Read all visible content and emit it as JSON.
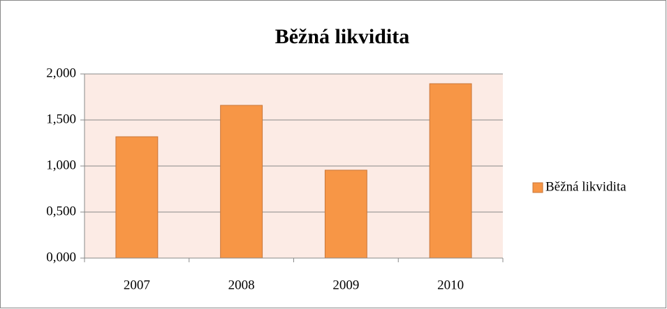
{
  "chart_data": {
    "type": "bar",
    "title": "Běžná likvidita",
    "categories": [
      "2007",
      "2008",
      "2009",
      "2010"
    ],
    "series": [
      {
        "name": "Běžná likvidita",
        "color": "#f79646",
        "values": [
          1.318,
          1.659,
          0.955,
          1.894
        ]
      }
    ],
    "ylim": [
      0,
      2
    ],
    "yticks": [
      {
        "value": 0,
        "label": "0,000"
      },
      {
        "value": 0.5,
        "label": "0,500"
      },
      {
        "value": 1,
        "label": "1,000"
      },
      {
        "value": 1.5,
        "label": "1,500"
      },
      {
        "value": 2,
        "label": "2,000"
      }
    ],
    "grid": true,
    "legend": "right"
  }
}
